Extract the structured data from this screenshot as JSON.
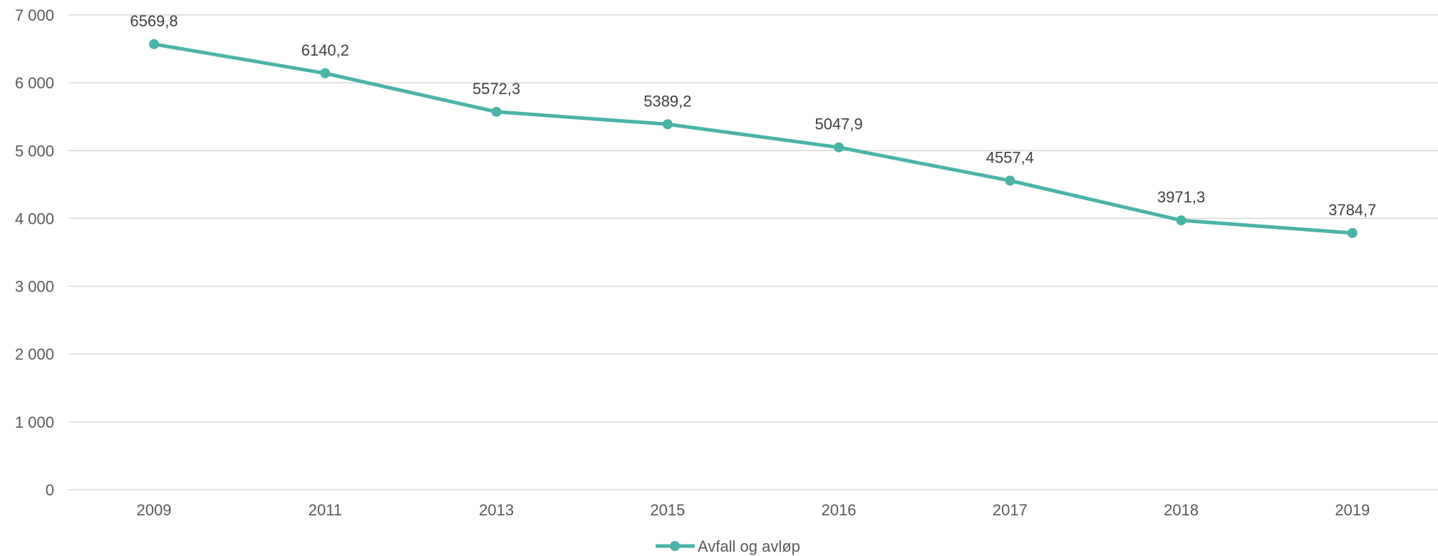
{
  "chart_data": {
    "type": "line",
    "title": "",
    "xlabel": "",
    "ylabel": "",
    "categories": [
      "2009",
      "2011",
      "2013",
      "2015",
      "2016",
      "2017",
      "2018",
      "2019"
    ],
    "series": [
      {
        "name": "Avfall og avløp",
        "values": [
          6569.8,
          6140.2,
          5572.3,
          5389.2,
          5047.9,
          4557.4,
          3971.3,
          3784.7
        ],
        "labels": [
          "6569,8",
          "6140,2",
          "5572,3",
          "5389,2",
          "5047,9",
          "4557,4",
          "3971,3",
          "3784,7"
        ],
        "color": "#4bb3a8"
      }
    ],
    "ylim": [
      0,
      7000
    ],
    "yticks": [
      0,
      1000,
      2000,
      3000,
      4000,
      5000,
      6000,
      7000
    ],
    "ytick_labels": [
      "0",
      "1 000",
      "2 000",
      "3 000",
      "4 000",
      "5 000",
      "6 000",
      "7 000"
    ],
    "grid": true,
    "legend_position": "bottom-center"
  }
}
